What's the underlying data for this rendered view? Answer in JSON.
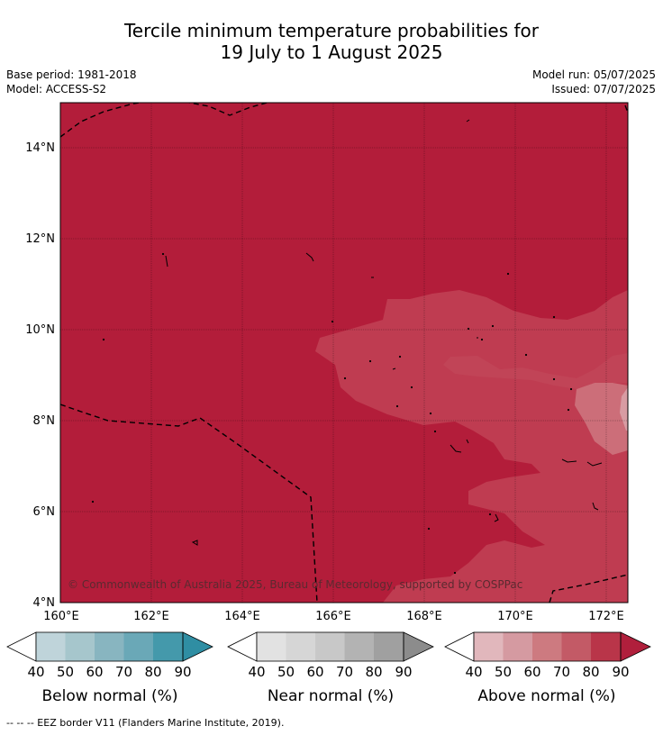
{
  "title_line1": "Tercile minimum temperature probabilities for",
  "title_line2": "19 July to 1 August 2025",
  "base_period": "Base period: 1981-2018",
  "model": "Model: ACCESS-S2",
  "model_run": "Model run: 05/07/2025",
  "issued": "Issued: 07/07/2025",
  "copyright": "© Commonwealth of Australia 2025, Bureau of Meteorology, supported by COSPPac",
  "footer_note": "--  --  -- EEZ border V11 (Flanders Marine Institute, 2019).",
  "colors": {
    "above_90": "#b31d3a",
    "above_80": "#bf3c51",
    "above_70": "#cc6e79",
    "above_60": "#d89ca3",
    "below": [
      "#ffffff",
      "#bfd4da",
      "#a6c6cc",
      "#88b5c0",
      "#6aa8b7",
      "#4499ab",
      "#2f8ea3"
    ],
    "near": [
      "#ffffff",
      "#e2e2e2",
      "#d6d6d6",
      "#c8c8c8",
      "#b3b3b3",
      "#a0a0a0",
      "#8c8c8c"
    ],
    "above": [
      "#ffffff",
      "#e1b7bc",
      "#d59aa1",
      "#cd7a80",
      "#c35a66",
      "#b93549",
      "#b01f3c"
    ]
  },
  "map": {
    "lon_range": [
      160,
      172.5
    ],
    "lat_range": [
      4,
      15
    ],
    "lon_ticks": [
      160,
      162,
      164,
      166,
      168,
      170,
      172
    ],
    "lat_ticks": [
      4,
      6,
      8,
      10,
      12,
      14
    ],
    "lon_tick_labels": [
      "160°E",
      "162°E",
      "164°E",
      "166°E",
      "168°E",
      "170°E",
      "172°E"
    ],
    "lat_tick_labels": [
      "4°N",
      "6°N",
      "8°N",
      "10°N",
      "12°N",
      "14°N"
    ]
  },
  "colorbars": [
    {
      "title": "Below normal (%)",
      "ticks": [
        "40",
        "50",
        "60",
        "70",
        "80",
        "90"
      ]
    },
    {
      "title": "Near normal (%)",
      "ticks": [
        "40",
        "50",
        "60",
        "70",
        "80",
        "90"
      ]
    },
    {
      "title": "Above normal (%)",
      "ticks": [
        "40",
        "50",
        "60",
        "70",
        "80",
        "90"
      ]
    }
  ]
}
